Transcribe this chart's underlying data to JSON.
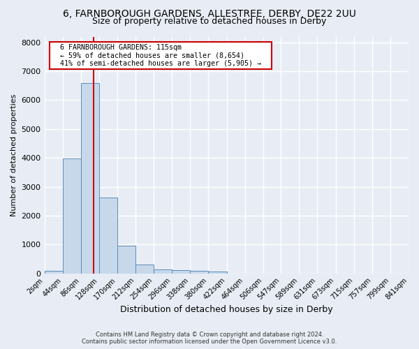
{
  "title": "6, FARNBOROUGH GARDENS, ALLESTREE, DERBY, DE22 2UU",
  "subtitle": "Size of property relative to detached houses in Derby",
  "xlabel": "Distribution of detached houses by size in Derby",
  "ylabel": "Number of detached properties",
  "footer_line1": "Contains HM Land Registry data © Crown copyright and database right 2024.",
  "footer_line2": "Contains public sector information licensed under the Open Government Licence v3.0.",
  "bin_edges": [
    2,
    44,
    86,
    128,
    170,
    212,
    254,
    296,
    338,
    380,
    422,
    464,
    506,
    547,
    589,
    631,
    673,
    715,
    757,
    799,
    841
  ],
  "bar_values": [
    75,
    3980,
    6580,
    2620,
    960,
    310,
    130,
    120,
    95,
    70,
    0,
    0,
    0,
    0,
    0,
    0,
    0,
    0,
    0,
    0
  ],
  "bar_color": "#c8d8eb",
  "bar_edge_color": "#5b8db8",
  "vline_x": 115,
  "vline_color": "#cc0000",
  "annotation_title": "6 FARNBOROUGH GARDENS: 115sqm",
  "annotation_line2": "← 59% of detached houses are smaller (8,654)",
  "annotation_line3": "41% of semi-detached houses are larger (5,905) →",
  "annotation_box_color": "#cc0000",
  "annotation_bg_color": "#ffffff",
  "ylim": [
    0,
    8200
  ],
  "yticks": [
    0,
    1000,
    2000,
    3000,
    4000,
    5000,
    6000,
    7000,
    8000
  ],
  "bg_color": "#e8edf5",
  "plot_bg_color": "#e8edf5",
  "grid_color": "#ffffff",
  "title_fontsize": 10,
  "subtitle_fontsize": 9
}
